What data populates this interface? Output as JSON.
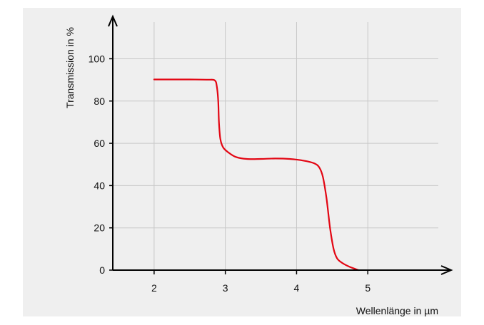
{
  "chart_data": {
    "type": "line",
    "xlabel": "Wellenlänge in µm",
    "ylabel": "Transmission in %",
    "x_ticks": [
      "2",
      "3",
      "4",
      "5"
    ],
    "y_ticks": [
      "0",
      "20",
      "40",
      "60",
      "80",
      "100"
    ],
    "xlim": [
      1.42,
      6.05
    ],
    "ylim": [
      0,
      116
    ],
    "grid": true,
    "series": [
      {
        "color": "#e30613",
        "points": [
          [
            2.0,
            90.2
          ],
          [
            2.5,
            90.2
          ],
          [
            2.75,
            90.1
          ],
          [
            2.85,
            89.8
          ],
          [
            2.88,
            87
          ],
          [
            2.9,
            80
          ],
          [
            2.91,
            70
          ],
          [
            2.93,
            62
          ],
          [
            2.97,
            58
          ],
          [
            3.05,
            55.5
          ],
          [
            3.15,
            53.5
          ],
          [
            3.3,
            52.6
          ],
          [
            3.5,
            52.6
          ],
          [
            3.7,
            52.8
          ],
          [
            3.9,
            52.6
          ],
          [
            4.1,
            51.8
          ],
          [
            4.25,
            50.5
          ],
          [
            4.32,
            48.5
          ],
          [
            4.37,
            44
          ],
          [
            4.42,
            34
          ],
          [
            4.47,
            20
          ],
          [
            4.52,
            10
          ],
          [
            4.57,
            5.5
          ],
          [
            4.65,
            3.2
          ],
          [
            4.75,
            1.5
          ],
          [
            4.87,
            0
          ]
        ]
      }
    ]
  }
}
